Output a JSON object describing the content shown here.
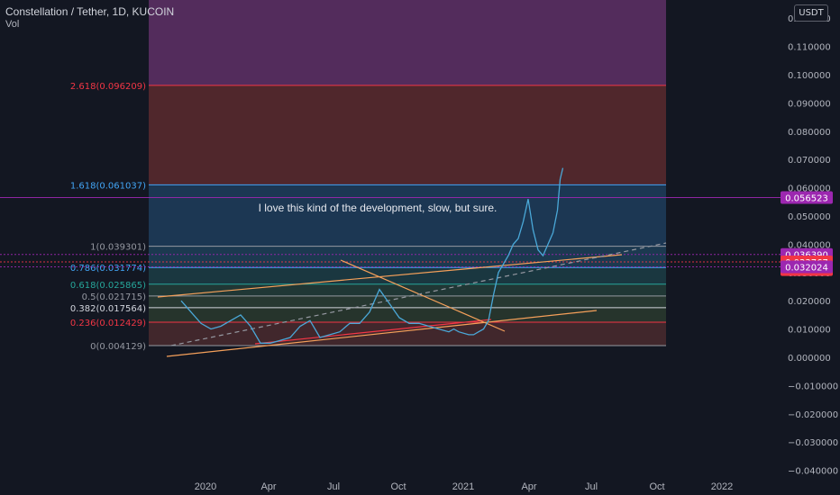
{
  "header": {
    "symbol_line": "Constellation / Tether, 1D, KUCOIN",
    "volume_label": "Vol",
    "currency": "USDT"
  },
  "colors": {
    "background": "#131722",
    "price_line": "#4aa8d8",
    "support_line": "#f23645",
    "trend_line": "#f5a05a",
    "fib_band_top": "#5b2f63",
    "fib_band_2618": "#5c2a2e",
    "fib_band_1618": "#1f3d5c",
    "fib_band_green": "#2c3e34",
    "fib_band_red": "#4a2a2e"
  },
  "chart_data": {
    "type": "line",
    "title": "Constellation / Tether, 1D, KUCOIN",
    "ylim": [
      -0.04,
      0.12
    ],
    "y_ticks": [
      "0.120000",
      "0.110000",
      "0.100000",
      "0.090000",
      "0.080000",
      "0.070000",
      "0.060000",
      "0.050000",
      "0.040000",
      "0.030000",
      "0.020000",
      "0.010000",
      "0.000000",
      "−0.010000",
      "−0.020000",
      "−0.030000",
      "−0.040000"
    ],
    "x_ticks": [
      "2020",
      "Apr",
      "Jul",
      "Oct",
      "2021",
      "Apr",
      "Jul",
      "Oct",
      "2022"
    ],
    "price_labels": [
      {
        "value": 0.056523,
        "text": "0.056523",
        "color": "#9c27b0"
      },
      {
        "value": 0.03639,
        "text": "0.036390",
        "color": "#9c27b0"
      },
      {
        "value": 0.033767,
        "text": "0.033767",
        "color": "#f23645"
      },
      {
        "value": 0.031,
        "text": "05:09:14",
        "color": "#f23645"
      },
      {
        "value": 0.032024,
        "text": "0.032024",
        "color": "#9c27b0"
      }
    ],
    "fib_levels": [
      {
        "label": "2.618(0.096209)",
        "value": 0.096209,
        "color": "#f23645"
      },
      {
        "label": "1.618(0.061037)",
        "value": 0.061037,
        "color": "#42a5f5"
      },
      {
        "label": "1(0.039301)",
        "value": 0.039301,
        "color": "#9598a1"
      },
      {
        "label": "0.786(0.031774)",
        "value": 0.031774,
        "color": "#42a5f5"
      },
      {
        "label": "0.618(0.025865)",
        "value": 0.025865,
        "color": "#26a69a"
      },
      {
        "label": "0.5(0.021715)",
        "value": 0.021715,
        "color": "#9598a1"
      },
      {
        "label": "0.382(0.017564)",
        "value": 0.017564,
        "color": "#d1d4dc"
      },
      {
        "label": "0.236(0.012429)",
        "value": 0.012429,
        "color": "#f23645"
      },
      {
        "label": "0(0.004129)",
        "value": 0.004129,
        "color": "#9598a1"
      }
    ],
    "annotation": "I love this kind of the development, slow, but sure.",
    "x_index_range": [
      0,
      100
    ],
    "series": [
      {
        "name": "",
        "x": [
          2,
          4,
          6,
          8,
          10,
          12,
          14,
          16,
          18,
          20,
          22,
          24,
          26,
          28,
          30,
          32,
          34,
          36,
          38,
          40,
          42,
          44,
          46,
          48,
          50,
          52,
          54,
          56,
          57,
          58,
          60,
          61,
          62,
          63,
          64,
          65,
          66,
          67,
          68,
          69,
          70,
          71,
          72,
          73,
          74,
          75,
          76,
          77
        ],
        "values": [
          0.02,
          0.016,
          0.012,
          0.01,
          0.011,
          0.013,
          0.015,
          0.011,
          0.005,
          0.005,
          0.006,
          0.007,
          0.011,
          0.013,
          0.007,
          0.008,
          0.009,
          0.012,
          0.012,
          0.016,
          0.024,
          0.019,
          0.014,
          0.012,
          0.012,
          0.011,
          0.01,
          0.009,
          0.01,
          0.009,
          0.008,
          0.008,
          0.009,
          0.01,
          0.013,
          0.022,
          0.03,
          0.033,
          0.036,
          0.04,
          0.042,
          0.048,
          0.056,
          0.045,
          0.038,
          0.036,
          0.04,
          0.044
        ]
      }
    ]
  }
}
